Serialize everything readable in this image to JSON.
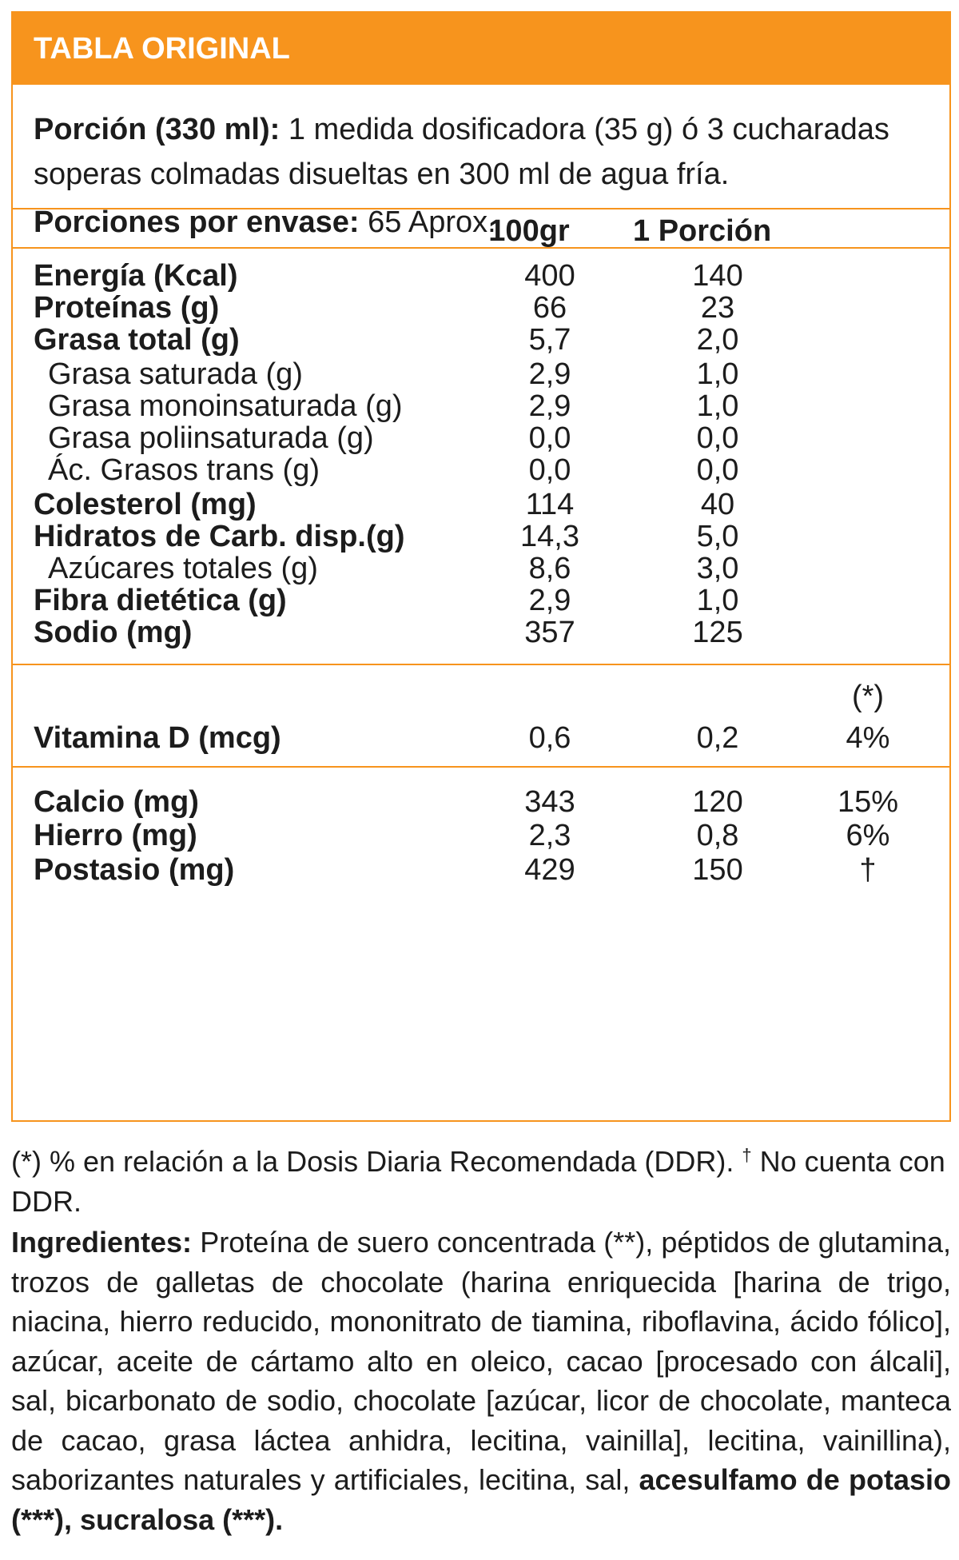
{
  "header": {
    "title": "TABLA ORIGINAL"
  },
  "serving": {
    "label": "Porción (330 ml):",
    "text": " 1 medida dosificadora (35 g) ó 3 cucharadas soperas colmadas disueltas en 300 ml de agua fría.",
    "per_container_label": "Porciones por envase:",
    "per_container_value": " 65 Aprox."
  },
  "columns": {
    "c1": "100gr",
    "c2": "1 Porción"
  },
  "nutrients": [
    {
      "label": "Energía (Kcal)",
      "v1": "400",
      "v2": "140"
    },
    {
      "label": "Proteínas (g)",
      "v1": "66",
      "v2": "23"
    },
    {
      "label": "Grasa total (g)",
      "v1": "5,7",
      "v2": "2,0"
    },
    {
      "label": "Grasa saturada (g)",
      "v1": "2,9",
      "v2": "1,0"
    },
    {
      "label": "Grasa monoinsaturada (g)",
      "v1": "2,9",
      "v2": "1,0"
    },
    {
      "label": "Grasa poliinsaturada (g)",
      "v1": "0,0",
      "v2": "0,0"
    },
    {
      "label": "Ác. Grasos trans (g)",
      "v1": "0,0",
      "v2": "0,0"
    },
    {
      "label": "Colesterol (mg)",
      "v1": "114",
      "v2": "40"
    },
    {
      "label": "Hidratos de Carb. disp.(g)",
      "v1": "14,3",
      "v2": "5,0"
    },
    {
      "label": "Azúcares totales (g)",
      "v1": "8,6",
      "v2": "3,0"
    },
    {
      "label": "Fibra dietética (g)",
      "v1": "2,9",
      "v2": "1,0"
    },
    {
      "label": "Sodio (mg)",
      "v1": "357",
      "v2": "125"
    }
  ],
  "vitamins": {
    "ddr_marker": "(*)",
    "vitamin_d": {
      "label": "Vitamina D (mcg)",
      "v1": "0,6",
      "v2": "0,2",
      "v3": "4%"
    }
  },
  "minerals": [
    {
      "label": "Calcio (mg)",
      "v1": "343",
      "v2": "120",
      "v3": "15%"
    },
    {
      "label": "Hierro (mg)",
      "v1": "2,3",
      "v2": "0,8",
      "v3": "6%"
    },
    {
      "label": "Postasio (mg)",
      "v1": "429",
      "v2": "150",
      "v3": "†"
    }
  ],
  "footnote": {
    "text_a": "(*) % en relación a la Dosis Diaria Recomendada (DDR). ",
    "dagger": "†",
    "text_b": " No cuenta con DDR."
  },
  "ingredients": {
    "label": "Ingredientes:",
    "text": " Proteína de suero concentrada (**), péptidos de glutamina, trozos de galletas de chocolate (harina enriquecida [harina de trigo, niacina, hierro reducido, mononitrato de tiamina, riboflavina, ácido fólico], azúcar, aceite de cártamo alto en oleico, cacao [procesado con álcali], sal, bicarbonato de sodio, chocolate [azúcar, licor de chocolate, manteca de cacao, grasa láctea anhidra, lecitina, vainilla], lecitina, vainillina), saborizantes naturales y artificiales, lecitina, sal, ",
    "bold_tail": "acesulfamo de potasio (***), sucralosa (***)."
  }
}
